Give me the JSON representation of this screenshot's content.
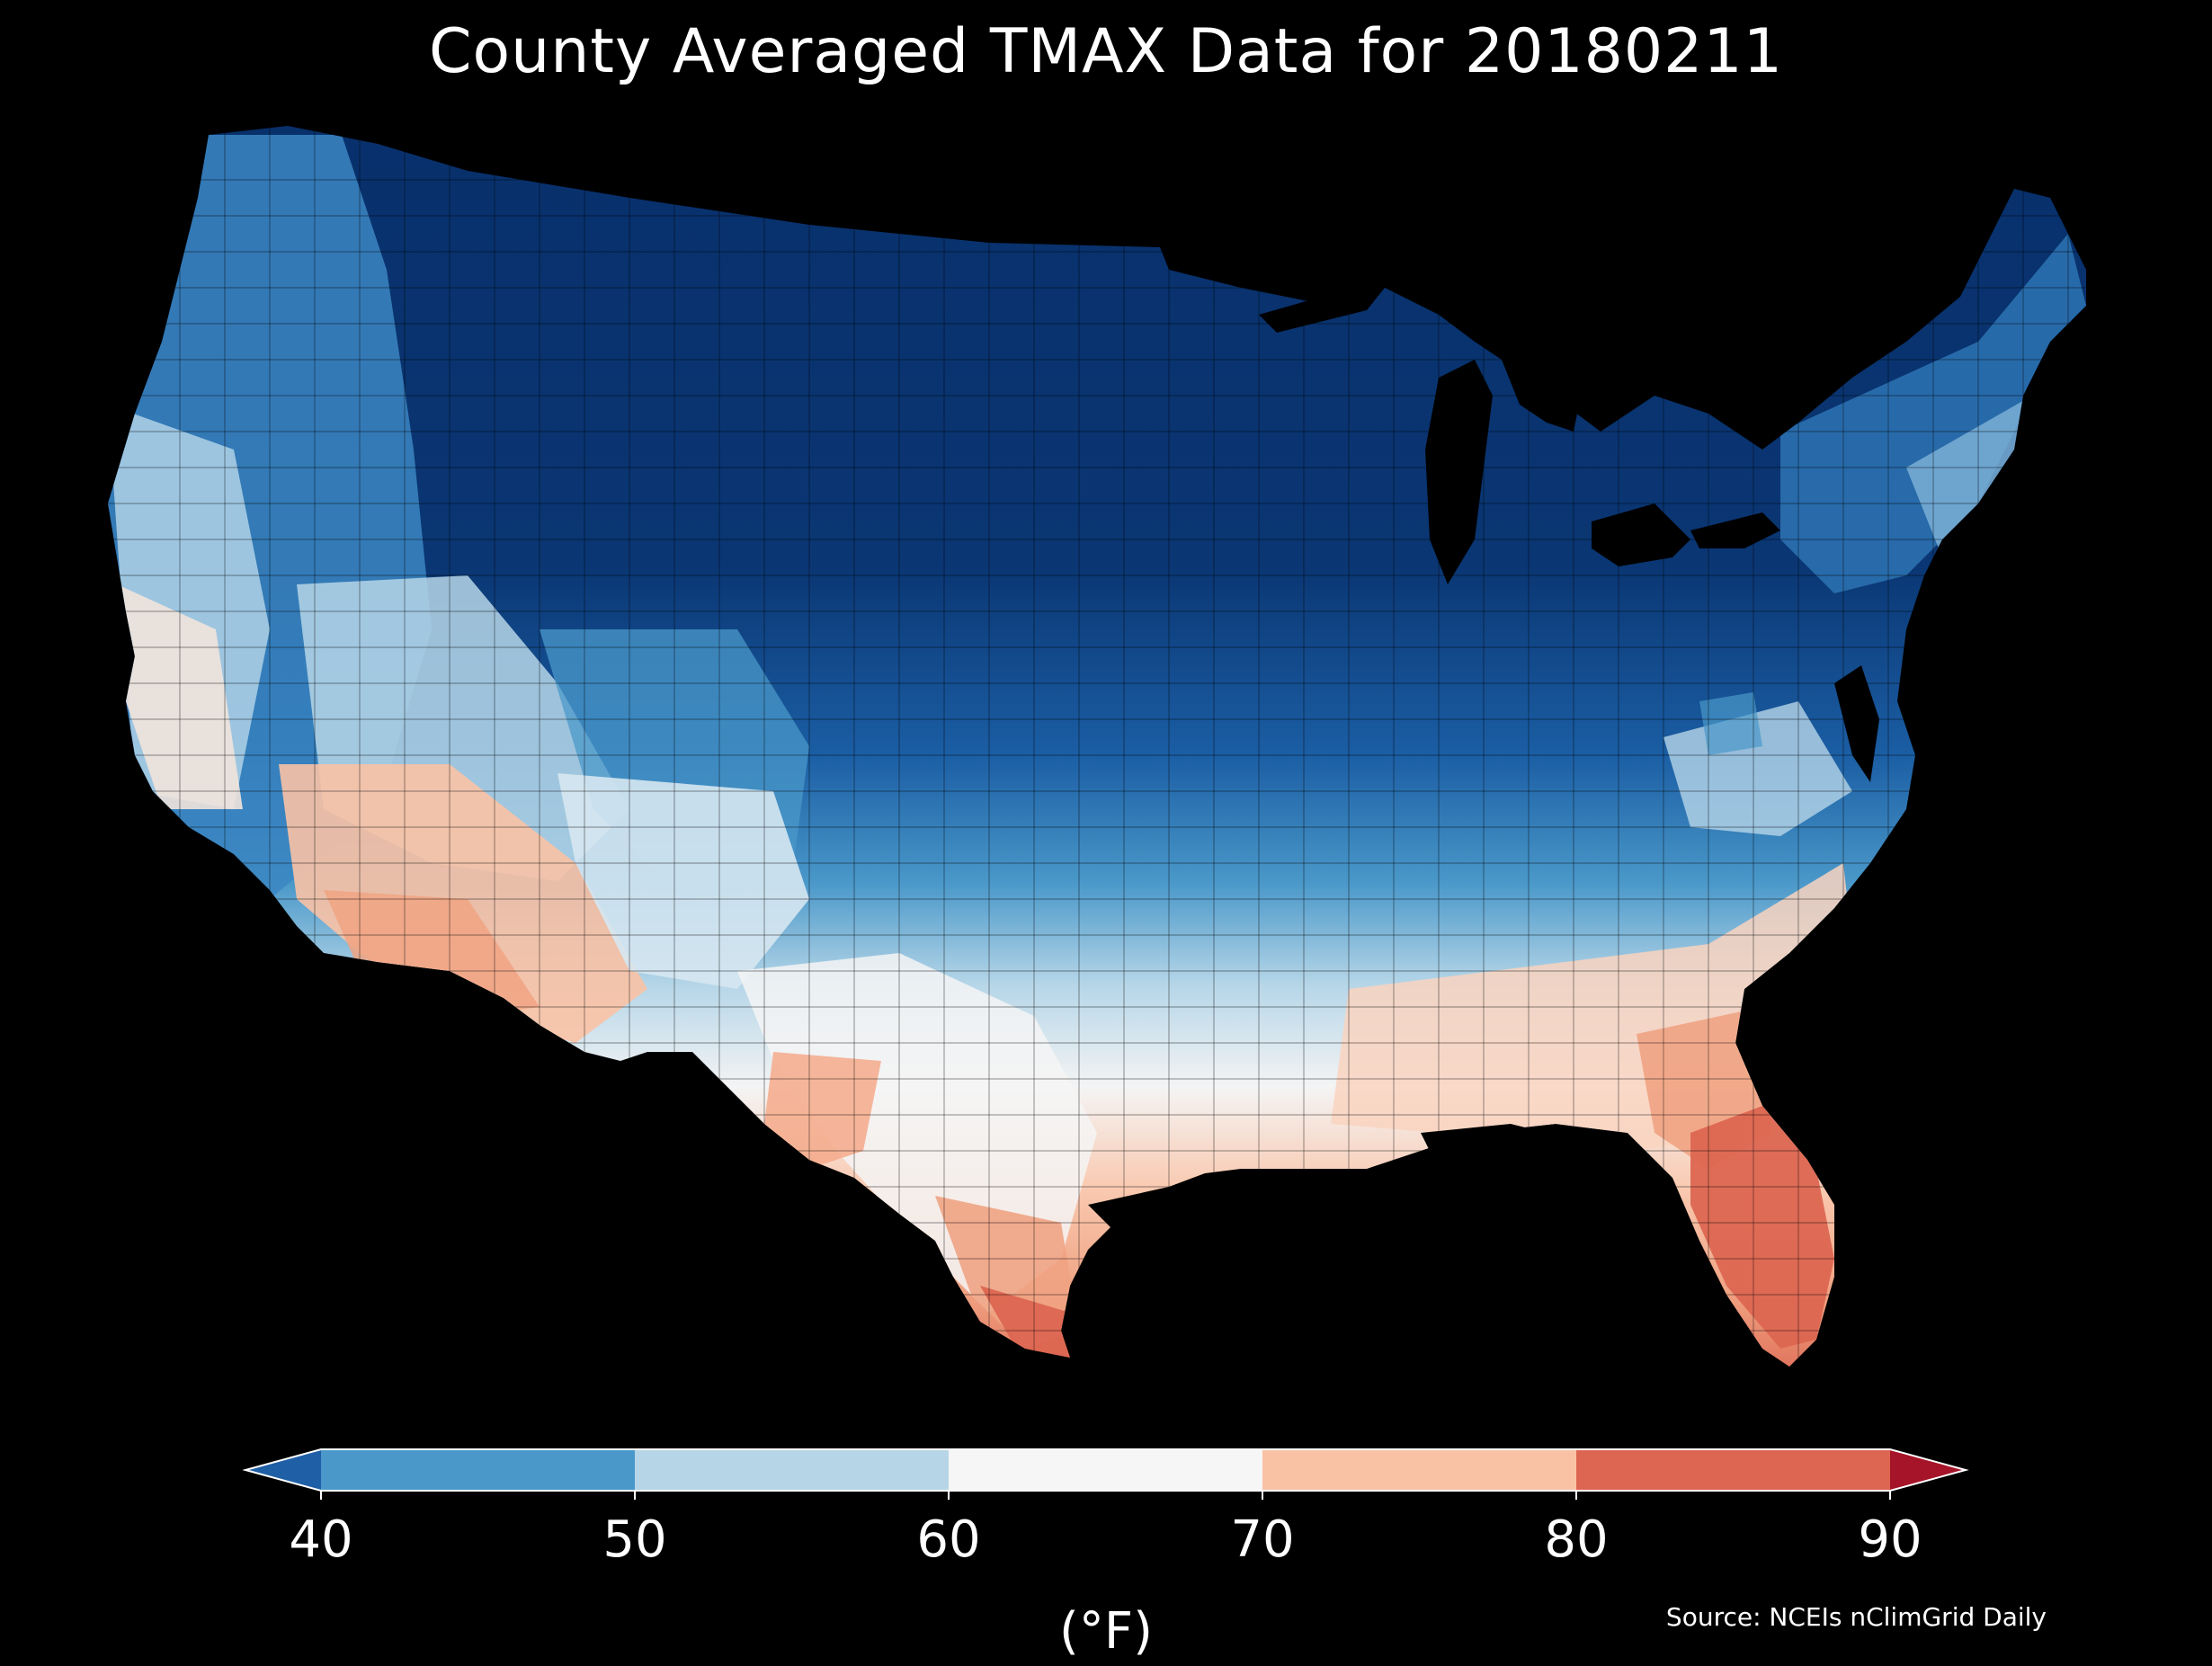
{
  "title": "County Averaged TMAX Data for 20180211",
  "colorbar": {
    "ticks": [
      "40",
      "50",
      "60",
      "70",
      "80",
      "90"
    ],
    "unit": "(°F)",
    "bins": [
      {
        "range": [
          40,
          50
        ],
        "color": "#4a98c9"
      },
      {
        "range": [
          50,
          60
        ],
        "color": "#b6d6e8"
      },
      {
        "range": [
          60,
          70
        ],
        "color": "#f6f6f6"
      },
      {
        "range": [
          70,
          80
        ],
        "color": "#f9c2a5"
      },
      {
        "range": [
          80,
          90
        ],
        "color": "#dc6651"
      }
    ],
    "under_color": "#1f5fa6",
    "over_color": "#a51428",
    "extend": "both"
  },
  "source": "Source: NCEIs nClimGrid Daily",
  "map": {
    "region": "Contiguous United States",
    "variable": "TMAX",
    "aggregation": "County averaged",
    "background": "#000000",
    "palette": {
      "coldest": "#08306b",
      "very_cold": "#0f4c8c",
      "cold": "#2b72b8",
      "cool": "#4a98c9",
      "mild_cool": "#b6d6e8",
      "neutral": "#f4f4f4",
      "warm": "#f9c2a5",
      "hot": "#dc6651"
    }
  }
}
